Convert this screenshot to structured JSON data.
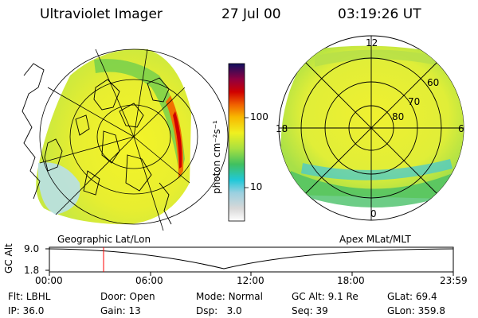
{
  "header": {
    "instrument": "Ultraviolet Imager",
    "date": "27 Jul 00",
    "time": "03:19:26 UT"
  },
  "colorbar": {
    "unit_label": "photon cm⁻²s⁻¹",
    "ticks": [
      "100",
      "10"
    ]
  },
  "geo_panel": {
    "title": "Geographic Lat/Lon"
  },
  "apex_panel": {
    "title": "Apex MLat/MLT",
    "mlt_labels": [
      "12",
      "18",
      "6",
      "0"
    ],
    "mlat_labels": [
      "60",
      "70",
      "80"
    ]
  },
  "altitude_strip": {
    "axis_label": "GC Alt",
    "ticks": [
      "9.0",
      "1.8"
    ],
    "time_ticks": [
      "00:00",
      "06:00",
      "12:00",
      "18:00",
      "23:59"
    ],
    "marker_color": "#ff0000"
  },
  "params": {
    "row1": [
      {
        "label": "Flt:",
        "value": "LBHL"
      },
      {
        "label": "Door:",
        "value": "Open"
      },
      {
        "label": "Mode:",
        "value": "Normal"
      },
      {
        "label": "GC Alt:",
        "value": "9.1 Re"
      },
      {
        "label": "GLat:",
        "value": "69.4"
      }
    ],
    "row2": [
      {
        "label": "IP:",
        "value": "36.0"
      },
      {
        "label": "Gain:",
        "value": "13"
      },
      {
        "label": "Dsp:",
        "value": "3.0"
      },
      {
        "label": "Seq:",
        "value": "39"
      },
      {
        "label": "GLon:",
        "value": "359.8"
      }
    ]
  }
}
